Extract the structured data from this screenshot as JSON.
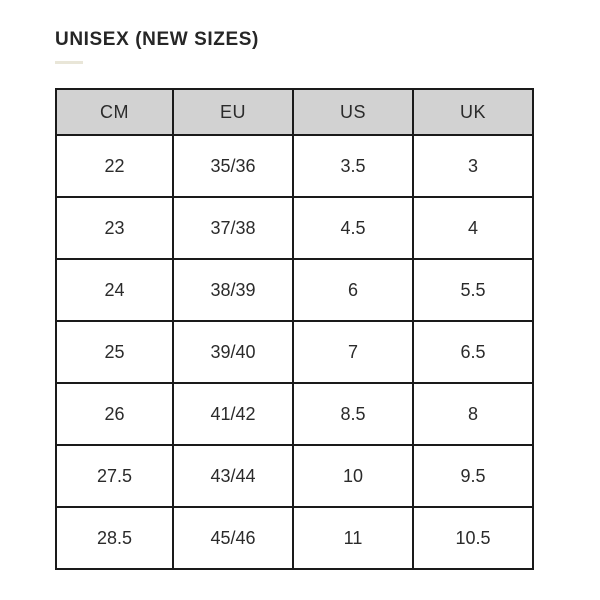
{
  "title": "UNISEX (NEW SIZES)",
  "colors": {
    "header_bg": "#d2d2d2",
    "table_border": "#1a1a1a",
    "accent_line": "#e9e6d8",
    "text": "#2b2b2b",
    "background": "#ffffff"
  },
  "table": {
    "columns": [
      "CM",
      "EU",
      "US",
      "UK"
    ],
    "rows": [
      [
        "22",
        "35/36",
        "3.5",
        "3"
      ],
      [
        "23",
        "37/38",
        "4.5",
        "4"
      ],
      [
        "24",
        "38/39",
        "6",
        "5.5"
      ],
      [
        "25",
        "39/40",
        "7",
        "6.5"
      ],
      [
        "26",
        "41/42",
        "8.5",
        "8"
      ],
      [
        "27.5",
        "43/44",
        "10",
        "9.5"
      ],
      [
        "28.5",
        "45/46",
        "11",
        "10.5"
      ]
    ]
  }
}
